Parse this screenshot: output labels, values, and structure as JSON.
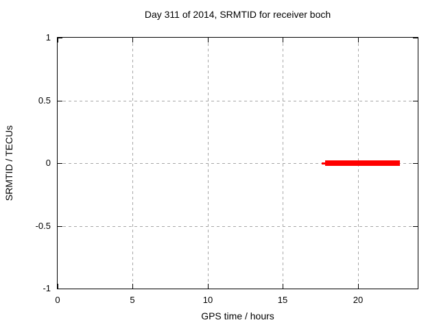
{
  "chart_data": {
    "type": "line",
    "title": "Day 311 of 2014, SRMTID for receiver boch",
    "xlabel": "GPS time / hours",
    "ylabel": "SRMTID / TECUs",
    "xlim": [
      0,
      24
    ],
    "ylim": [
      -1,
      1
    ],
    "xticks": [
      0,
      5,
      10,
      15,
      20
    ],
    "yticks": [
      1,
      0.5,
      0,
      -0.5,
      -1
    ],
    "grid": true,
    "grid_style": "dashed",
    "legend": false,
    "series": [
      {
        "name": "SRMTID",
        "color": "#ff0000",
        "points": [
          [
            17.6,
            0
          ],
          [
            22.8,
            0
          ]
        ],
        "segments": [
          {
            "x1": 17.6,
            "x2": 17.9,
            "y": 0,
            "thickness_px": 3
          },
          {
            "x1": 17.83,
            "x2": 22.82,
            "y": 0,
            "thickness_px": 8
          }
        ]
      }
    ]
  },
  "colors": {
    "background": "#ffffff",
    "border": "#000000",
    "grid": "#a6a6a6",
    "text": "#000000",
    "series_red": "#ff0000"
  }
}
